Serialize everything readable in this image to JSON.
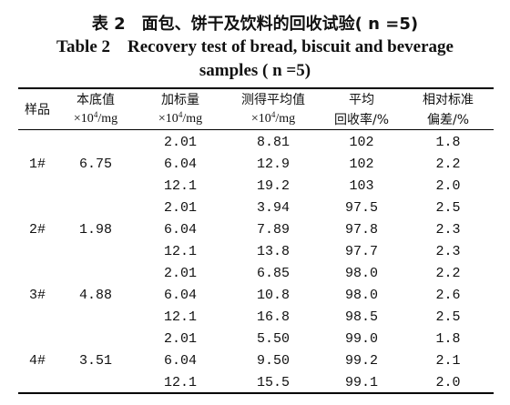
{
  "title_cn": "表 2　面包、饼干及饮料的回收试验( n =5)",
  "title_en_line1": "Table 2　Recovery test of bread, biscuit and beverage",
  "title_en_line2": "samples ( n =5)",
  "headers": {
    "col1": "样品",
    "col2_line1": "本底值",
    "col2_unit_prefix": "×10",
    "col2_unit_exp": "4",
    "col2_unit_suffix": "/mg",
    "col3_line1": "加标量",
    "col3_unit_prefix": "×10",
    "col3_unit_exp": "4",
    "col3_unit_suffix": "/mg",
    "col4_line1": "测得平均值",
    "col4_unit_prefix": "×10",
    "col4_unit_exp": "4",
    "col4_unit_suffix": "/mg",
    "col5_line1": "平均",
    "col5_line2": "回收率/%",
    "col6_line1": "相对标准",
    "col6_line2": "偏差/%"
  },
  "rows": [
    {
      "sample": "",
      "background": "",
      "spiked": "2.01",
      "measured": "8.81",
      "recovery": "102",
      "rsd": "1.8"
    },
    {
      "sample": "1#",
      "background": "6.75",
      "spiked": "6.04",
      "measured": "12.9",
      "recovery": "102",
      "rsd": "2.2"
    },
    {
      "sample": "",
      "background": "",
      "spiked": "12.1",
      "measured": "19.2",
      "recovery": "103",
      "rsd": "2.0"
    },
    {
      "sample": "",
      "background": "",
      "spiked": "2.01",
      "measured": "3.94",
      "recovery": "97.5",
      "rsd": "2.5"
    },
    {
      "sample": "2#",
      "background": "1.98",
      "spiked": "6.04",
      "measured": "7.89",
      "recovery": "97.8",
      "rsd": "2.3"
    },
    {
      "sample": "",
      "background": "",
      "spiked": "12.1",
      "measured": "13.8",
      "recovery": "97.7",
      "rsd": "2.3"
    },
    {
      "sample": "",
      "background": "",
      "spiked": "2.01",
      "measured": "6.85",
      "recovery": "98.0",
      "rsd": "2.2"
    },
    {
      "sample": "3#",
      "background": "4.88",
      "spiked": "6.04",
      "measured": "10.8",
      "recovery": "98.0",
      "rsd": "2.6"
    },
    {
      "sample": "",
      "background": "",
      "spiked": "12.1",
      "measured": "16.8",
      "recovery": "98.5",
      "rsd": "2.5"
    },
    {
      "sample": "",
      "background": "",
      "spiked": "2.01",
      "measured": "5.50",
      "recovery": "99.0",
      "rsd": "1.8"
    },
    {
      "sample": "4#",
      "background": "3.51",
      "spiked": "6.04",
      "measured": "9.50",
      "recovery": "99.2",
      "rsd": "2.1"
    },
    {
      "sample": "",
      "background": "",
      "spiked": "12.1",
      "measured": "15.5",
      "recovery": "99.1",
      "rsd": "2.0"
    }
  ]
}
